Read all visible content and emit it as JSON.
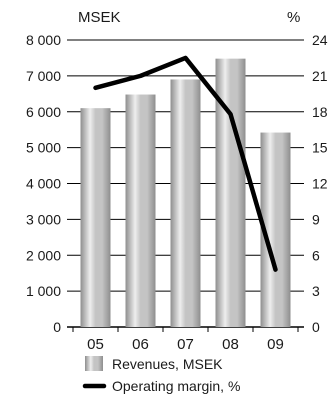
{
  "chart_data": {
    "type": "bar",
    "categories": [
      "05",
      "06",
      "07",
      "08",
      "09"
    ],
    "series": [
      {
        "name": "Revenues, MSEK",
        "kind": "bar",
        "axis": "left",
        "values": [
          6100,
          6480,
          6900,
          7480,
          5420
        ]
      },
      {
        "name": "Operating margin, %",
        "kind": "line",
        "axis": "right",
        "values": [
          20.0,
          21.0,
          22.5,
          17.8,
          4.8
        ]
      }
    ],
    "y_left": {
      "unit_label": "MSEK",
      "range": [
        0,
        8000
      ],
      "ticks": [
        0,
        1000,
        2000,
        3000,
        4000,
        5000,
        6000,
        7000,
        8000
      ],
      "tick_labels": [
        "0",
        "1 000",
        "2 000",
        "3 000",
        "4 000",
        "5 000",
        "6 000",
        "7 000",
        "8 000"
      ]
    },
    "y_right": {
      "unit_label": "%",
      "range": [
        0,
        24
      ],
      "ticks": [
        0,
        3,
        6,
        9,
        12,
        15,
        18,
        21,
        24
      ],
      "tick_labels": [
        "0",
        "3",
        "6",
        "9",
        "12",
        "15",
        "18",
        "21",
        "24"
      ]
    },
    "grid": true,
    "legend_position": "bottom-center",
    "colors": {
      "bar_light": "#eeeeee",
      "bar_mid": "#c4c4c4",
      "bar_dark": "#8e8e8e",
      "line": "#000000",
      "grid": "#000000"
    }
  }
}
